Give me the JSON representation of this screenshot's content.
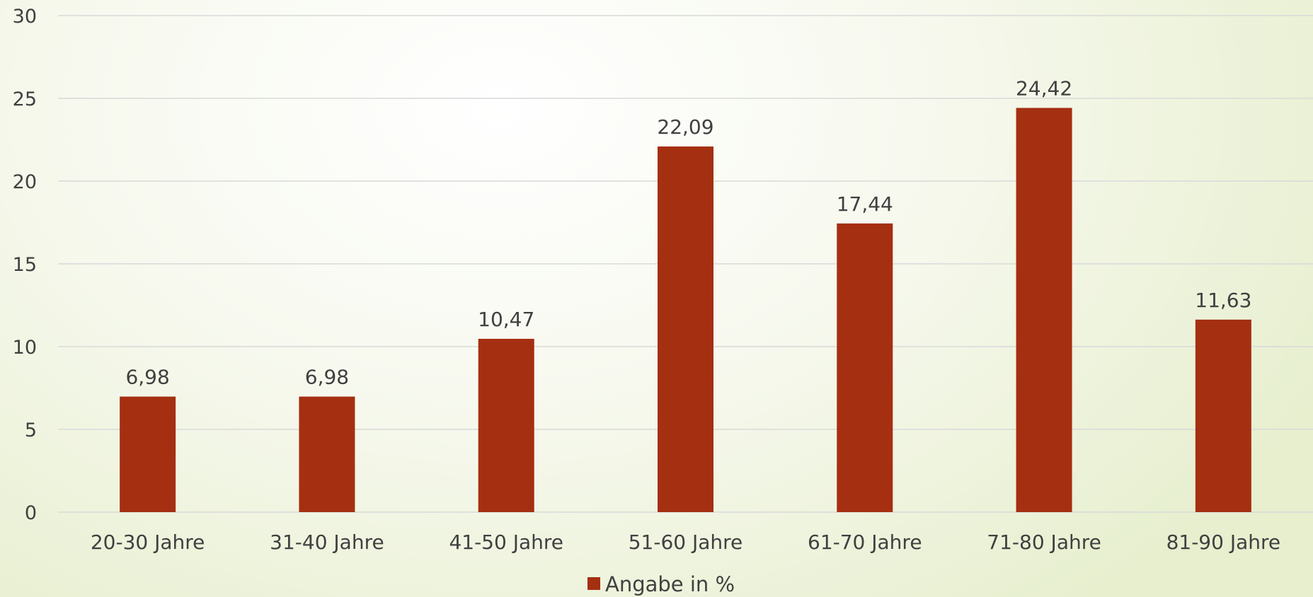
{
  "chart_data": {
    "type": "bar",
    "categories": [
      "20-30 Jahre",
      "31-40 Jahre",
      "41-50 Jahre",
      "51-60 Jahre",
      "61-70 Jahre",
      "71-80 Jahre",
      "81-90 Jahre"
    ],
    "series": [
      {
        "name": "Angabe in %",
        "values": [
          6.98,
          6.98,
          10.47,
          22.09,
          17.44,
          24.42,
          11.63
        ],
        "labels": [
          "6,98",
          "6,98",
          "10,47",
          "22,09",
          "17,44",
          "24,42",
          "11,63"
        ],
        "color": "#a52f11"
      }
    ],
    "ylim": [
      0,
      30
    ],
    "yticks": [
      "0",
      "5",
      "10",
      "15",
      "20",
      "25",
      "30"
    ],
    "grid": true,
    "legend": "bottom-center"
  }
}
